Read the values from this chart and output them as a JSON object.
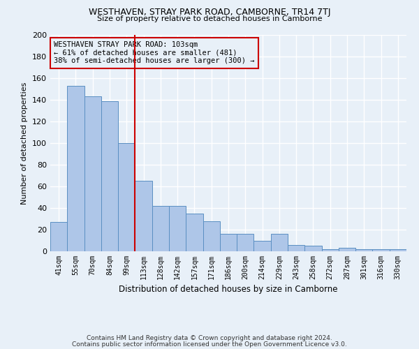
{
  "title": "WESTHAVEN, STRAY PARK ROAD, CAMBORNE, TR14 7TJ",
  "subtitle": "Size of property relative to detached houses in Camborne",
  "xlabel": "Distribution of detached houses by size in Camborne",
  "ylabel": "Number of detached properties",
  "categories": [
    "41sqm",
    "55sqm",
    "70sqm",
    "84sqm",
    "99sqm",
    "113sqm",
    "128sqm",
    "142sqm",
    "157sqm",
    "171sqm",
    "186sqm",
    "200sqm",
    "214sqm",
    "229sqm",
    "243sqm",
    "258sqm",
    "272sqm",
    "287sqm",
    "301sqm",
    "316sqm",
    "330sqm"
  ],
  "values": [
    27,
    153,
    143,
    139,
    100,
    65,
    42,
    42,
    35,
    28,
    16,
    16,
    10,
    16,
    6,
    5,
    2,
    3,
    2,
    2,
    2
  ],
  "bar_color": "#aec6e8",
  "bar_edge_color": "#5a8fc2",
  "background_color": "#e8f0f8",
  "grid_color": "#ffffff",
  "vline_x": 4.5,
  "vline_color": "#cc0000",
  "annotation_line1": "WESTHAVEN STRAY PARK ROAD: 103sqm",
  "annotation_line2": "← 61% of detached houses are smaller (481)",
  "annotation_line3": "38% of semi-detached houses are larger (300) →",
  "annotation_box_color": "#cc0000",
  "ylim": [
    0,
    200
  ],
  "yticks": [
    0,
    20,
    40,
    60,
    80,
    100,
    120,
    140,
    160,
    180,
    200
  ],
  "footer_line1": "Contains HM Land Registry data © Crown copyright and database right 2024.",
  "footer_line2": "Contains public sector information licensed under the Open Government Licence v3.0."
}
